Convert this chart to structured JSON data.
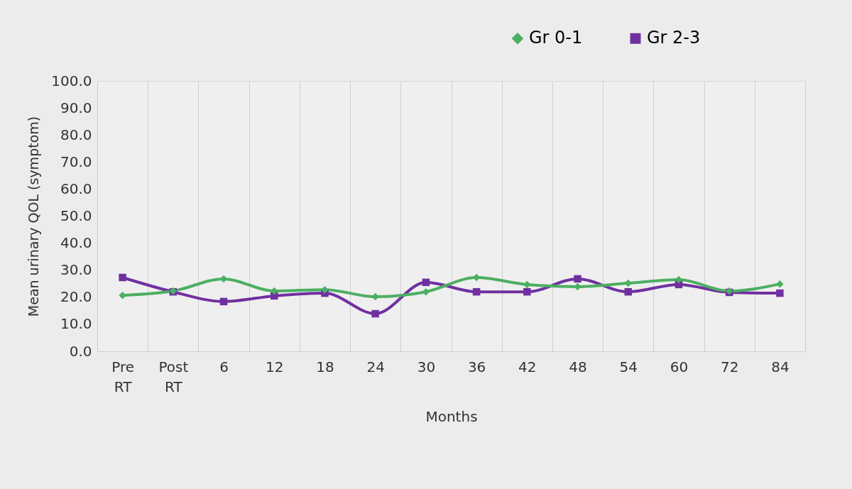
{
  "chart_data": {
    "type": "line",
    "xlabel": "Months",
    "ylabel": "Mean urinary QOL (symptom)",
    "categories": [
      "Pre RT",
      "Post RT",
      "6",
      "12",
      "18",
      "24",
      "30",
      "36",
      "42",
      "48",
      "54",
      "60",
      "72",
      "84"
    ],
    "series": [
      {
        "name": "Gr 0-1",
        "color": "#4caf62",
        "marker": "diamond",
        "values": [
          20.7,
          22.3,
          26.8,
          22.3,
          22.8,
          20.2,
          22.0,
          27.3,
          24.7,
          23.9,
          25.2,
          26.5,
          22.3,
          24.9
        ]
      },
      {
        "name": "Gr 2-3",
        "color": "#7030a0",
        "marker": "square",
        "values": [
          27.3,
          22.0,
          18.4,
          20.5,
          21.5,
          13.9,
          25.5,
          22.0,
          22.0,
          26.8,
          22.0,
          24.7,
          21.8,
          21.5
        ]
      }
    ],
    "ylim": [
      0,
      100
    ],
    "yticks": [
      {
        "value": 0,
        "label": "0.0"
      },
      {
        "value": 10,
        "label": "10.0"
      },
      {
        "value": 20,
        "label": "20.0"
      },
      {
        "value": 30,
        "label": "30.0"
      },
      {
        "value": 40,
        "label": "40.0"
      },
      {
        "value": 50,
        "label": "50.0"
      },
      {
        "value": 60,
        "label": "60.0"
      },
      {
        "value": 70,
        "label": "70.0"
      },
      {
        "value": 80,
        "label": "80.0"
      },
      {
        "value": 90,
        "label": "90.0"
      },
      {
        "value": 100,
        "label": "100.0"
      }
    ],
    "grid": "x",
    "legend": "top right",
    "line_style": "solid"
  }
}
